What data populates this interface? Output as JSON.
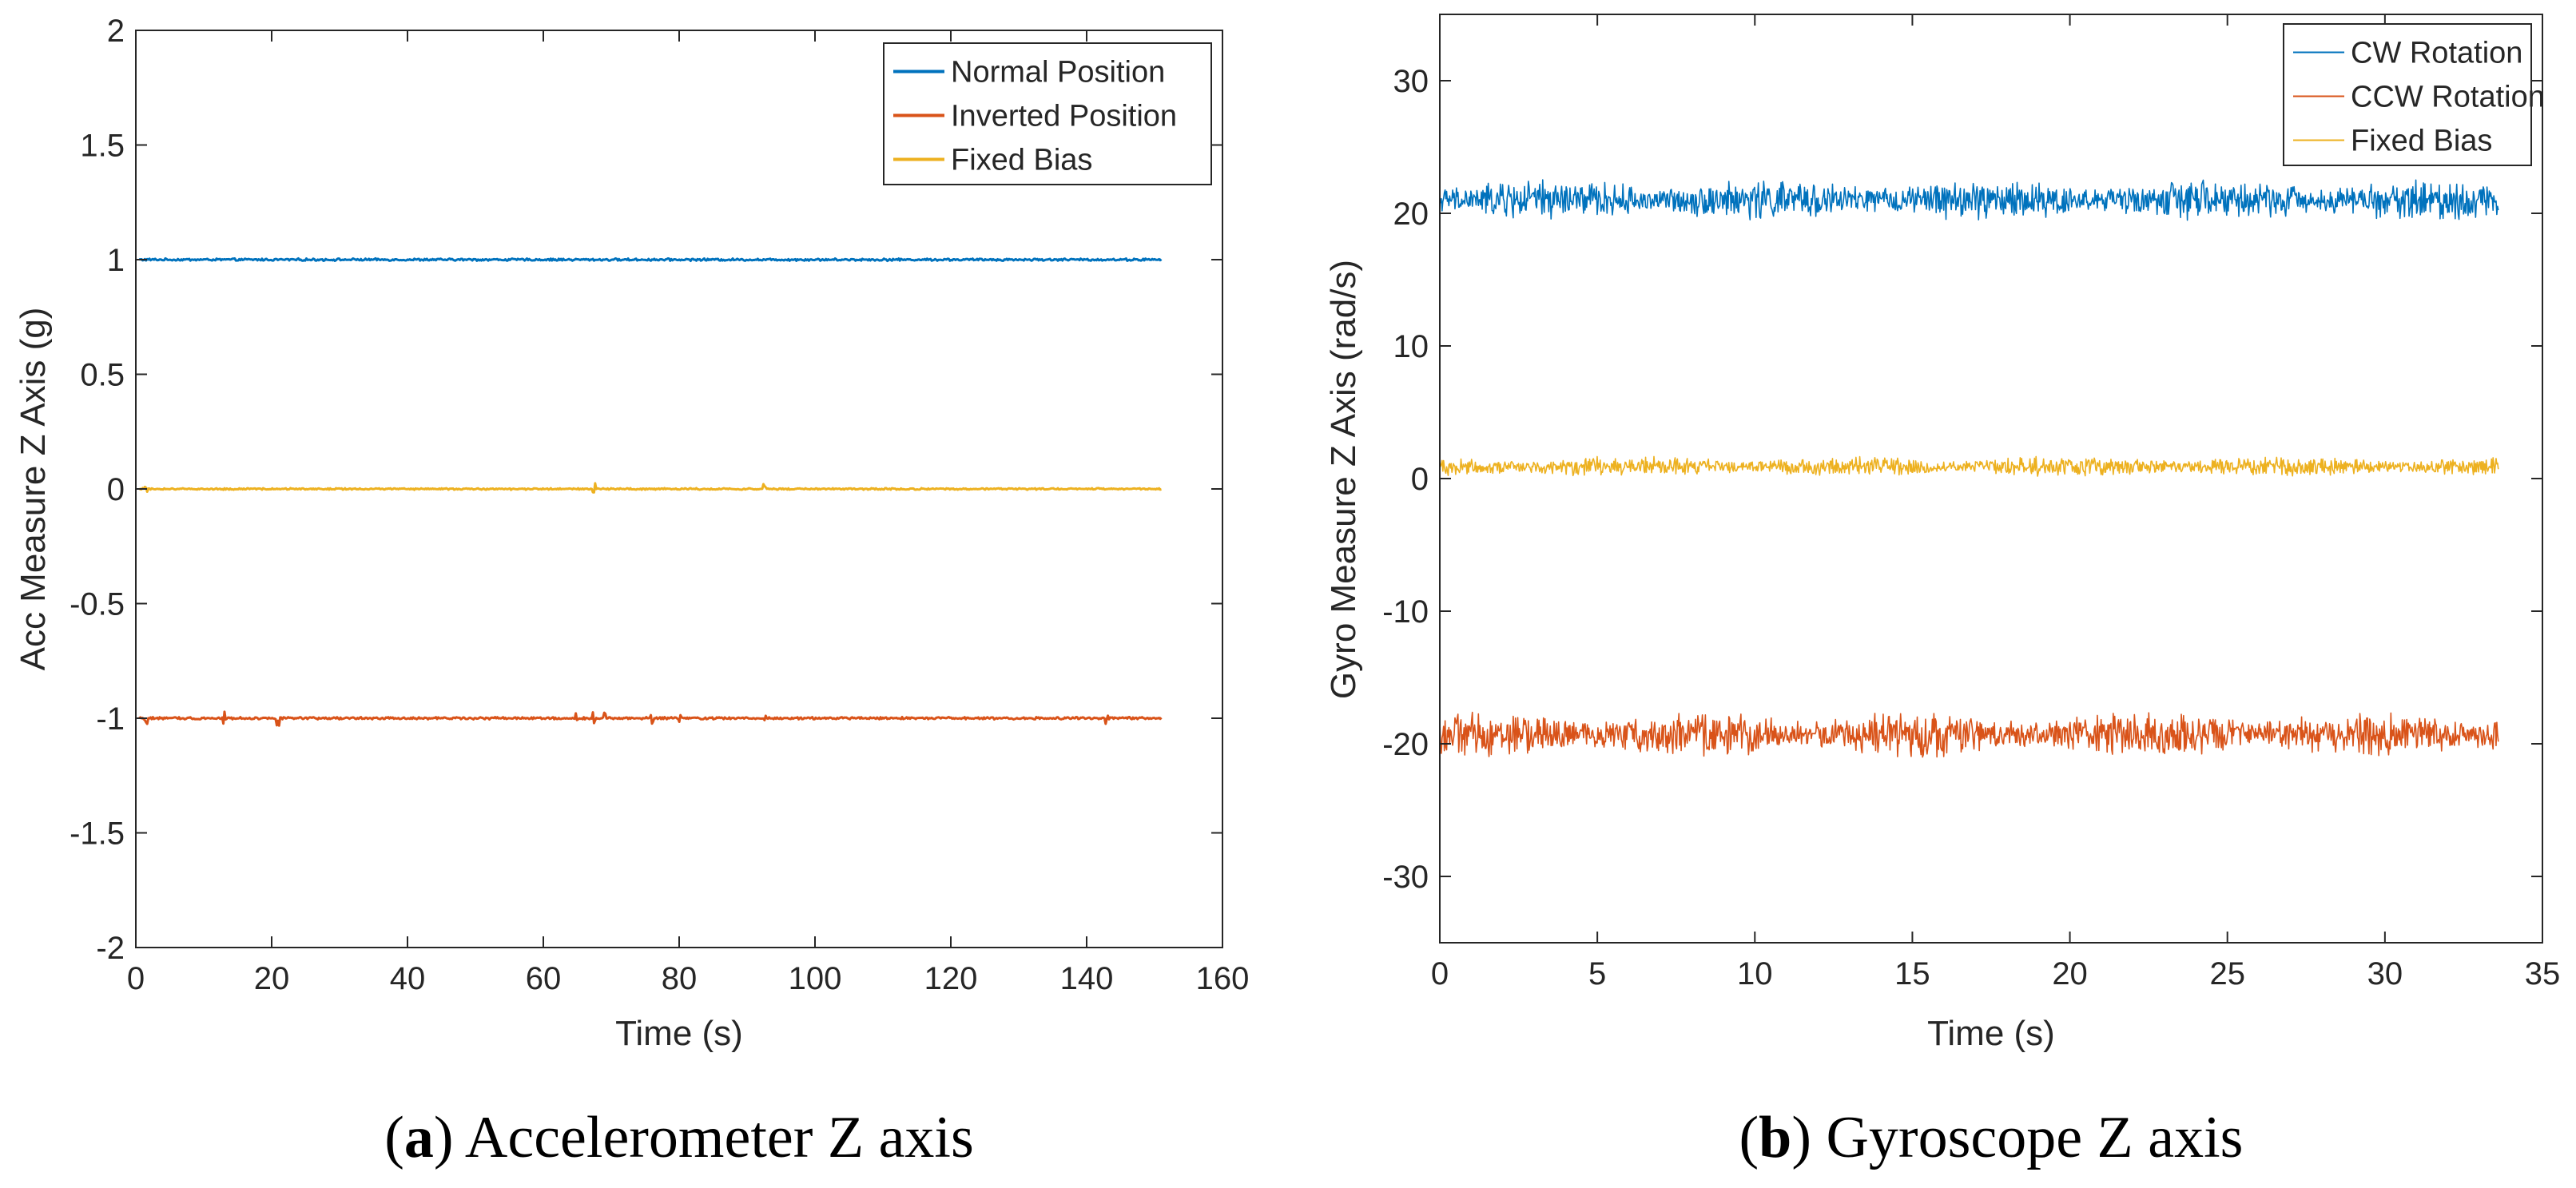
{
  "chart_data": [
    {
      "id": "acc",
      "type": "line",
      "caption_label": "a",
      "caption_text": "Accelerometer Z axis",
      "xlabel": "Time (s)",
      "ylabel": "Acc Measure Z Axis (g)",
      "xlim": [
        0,
        160
      ],
      "ylim": [
        -2,
        2
      ],
      "xticks": [
        0,
        20,
        40,
        60,
        80,
        100,
        120,
        140,
        160
      ],
      "xtick_labels": [
        "0",
        "20",
        "40",
        "60",
        "80",
        "100",
        "120",
        "140",
        "160"
      ],
      "yticks": [
        -2,
        -1.5,
        -1,
        -0.5,
        0,
        0.5,
        1,
        1.5,
        2
      ],
      "ytick_labels": [
        "-2",
        "-1.5",
        "-1",
        "-0.5",
        "0",
        "0.5",
        "1",
        "1.5",
        "2"
      ],
      "legend_position": "top-right",
      "series": [
        {
          "name": "Normal Position",
          "color": "#0072BD",
          "x_range": [
            0.5,
            151
          ],
          "mean": 1.0,
          "noise": 0.004,
          "spikes": [],
          "bold": true
        },
        {
          "name": "Inverted Position",
          "color": "#D95319",
          "x_range": [
            0.5,
            151
          ],
          "mean": -1.0,
          "noise": 0.004,
          "spikes": [
            1.5,
            13,
            21,
            65,
            67.5,
            69,
            76,
            80,
            92.5,
            143
          ],
          "bold": true
        },
        {
          "name": "Fixed Bias",
          "color": "#EDB120",
          "x_range": [
            0.5,
            151
          ],
          "mean": 0.0,
          "noise": 0.003,
          "spikes": [
            1.5,
            67.5,
            92.5
          ],
          "bold": true
        }
      ]
    },
    {
      "id": "gyro",
      "type": "line",
      "caption_label": "b",
      "caption_text": "Gyroscope Z axis",
      "xlabel": "Time (s)",
      "ylabel": "Gyro Measure Z Axis (rad/s)",
      "xlim": [
        0,
        35
      ],
      "ylim": [
        -35,
        35
      ],
      "xticks": [
        0,
        5,
        10,
        15,
        20,
        25,
        30,
        35
      ],
      "xtick_labels": [
        "0",
        "5",
        "10",
        "15",
        "20",
        "25",
        "30",
        "35"
      ],
      "yticks": [
        -30,
        -20,
        -10,
        0,
        10,
        20,
        30
      ],
      "ytick_labels": [
        "-30",
        "-20",
        "-10",
        "0",
        "10",
        "20",
        "30"
      ],
      "legend_position": "top-right",
      "series": [
        {
          "name": "CW Rotation",
          "color": "#0072BD",
          "x_range": [
            0,
            33.6
          ],
          "mean": 21.0,
          "noise": 0.9,
          "spikes": [],
          "bold": false
        },
        {
          "name": "CCW Rotation",
          "color": "#D95319",
          "x_range": [
            0,
            33.6
          ],
          "mean": -19.3,
          "noise": 1.0,
          "spikes": [],
          "bold": false
        },
        {
          "name": "Fixed Bias",
          "color": "#EDB120",
          "x_range": [
            0,
            33.6
          ],
          "mean": 0.9,
          "noise": 0.45,
          "spikes": [],
          "bold": false
        }
      ]
    }
  ]
}
